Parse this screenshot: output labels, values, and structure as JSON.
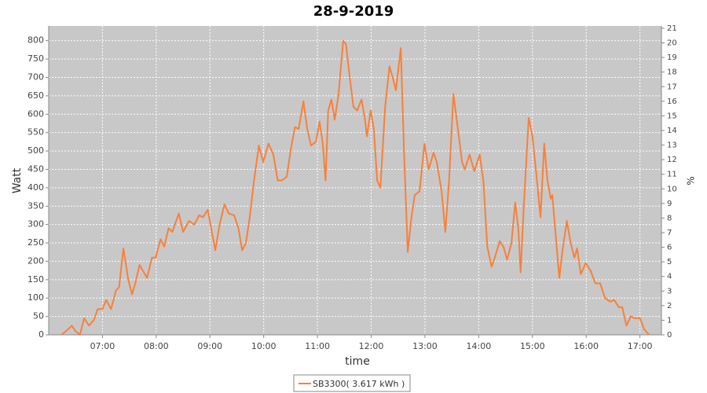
{
  "chart_data": {
    "type": "line",
    "title": "28-9-2019",
    "xlabel": "time",
    "ylabel": "Watt",
    "y2label": "%",
    "x": [
      6.24,
      6.36,
      6.43,
      6.5,
      6.58,
      6.66,
      6.75,
      6.84,
      6.91,
      7.0,
      7.07,
      7.16,
      7.25,
      7.31,
      7.39,
      7.48,
      7.55,
      7.61,
      7.69,
      7.77,
      7.83,
      7.92,
      7.99,
      8.08,
      8.15,
      8.23,
      8.3,
      8.42,
      8.5,
      8.61,
      8.71,
      8.8,
      8.87,
      8.96,
      9.01,
      9.1,
      9.18,
      9.27,
      9.35,
      9.45,
      9.53,
      9.6,
      9.67,
      9.74,
      9.82,
      9.91,
      9.99,
      10.09,
      10.18,
      10.26,
      10.34,
      10.43,
      10.5,
      10.58,
      10.65,
      10.74,
      10.81,
      10.88,
      10.97,
      11.04,
      11.1,
      11.15,
      11.2,
      11.26,
      11.32,
      11.39,
      11.48,
      11.53,
      11.6,
      11.67,
      11.74,
      11.82,
      11.88,
      11.92,
      11.99,
      12.05,
      12.11,
      12.17,
      12.26,
      12.34,
      12.4,
      12.46,
      12.55,
      12.61,
      12.68,
      12.74,
      12.81,
      12.9,
      12.99,
      13.07,
      13.16,
      13.22,
      13.31,
      13.38,
      13.45,
      13.53,
      13.6,
      13.69,
      13.74,
      13.83,
      13.92,
      14.02,
      14.09,
      14.16,
      14.24,
      14.3,
      14.39,
      14.46,
      14.53,
      14.61,
      14.68,
      14.74,
      14.78,
      14.84,
      14.93,
      15.0,
      15.07,
      15.15,
      15.22,
      15.28,
      15.34,
      15.37,
      15.45,
      15.5,
      15.56,
      15.64,
      15.71,
      15.78,
      15.83,
      15.9,
      15.99,
      16.08,
      16.17,
      16.26,
      16.35,
      16.45,
      16.52,
      16.61,
      16.67,
      16.75,
      16.83,
      16.91,
      17.0,
      17.08,
      17.17
    ],
    "series": [
      {
        "name": "SB3300( 3.617 kWh )",
        "color": "#f8803a",
        "values": [
          0,
          15,
          25,
          10,
          0,
          45,
          25,
          40,
          70,
          70,
          95,
          70,
          120,
          130,
          235,
          150,
          110,
          140,
          190,
          170,
          155,
          210,
          210,
          260,
          240,
          290,
          280,
          330,
          280,
          310,
          300,
          325,
          320,
          340,
          300,
          230,
          300,
          355,
          330,
          325,
          290,
          230,
          250,
          320,
          420,
          515,
          470,
          520,
          490,
          420,
          420,
          430,
          500,
          565,
          560,
          635,
          560,
          515,
          525,
          580,
          520,
          420,
          610,
          640,
          585,
          650,
          800,
          790,
          700,
          620,
          610,
          640,
          590,
          540,
          610,
          560,
          420,
          400,
          620,
          730,
          700,
          665,
          780,
          500,
          225,
          310,
          380,
          390,
          520,
          450,
          495,
          470,
          390,
          280,
          420,
          655,
          575,
          470,
          450,
          490,
          445,
          490,
          415,
          240,
          185,
          210,
          255,
          240,
          205,
          250,
          360,
          285,
          170,
          350,
          590,
          540,
          440,
          320,
          520,
          420,
          370,
          380,
          240,
          155,
          230,
          310,
          250,
          210,
          235,
          165,
          195,
          175,
          140,
          140,
          100,
          90,
          95,
          75,
          75,
          25,
          50,
          45,
          45,
          15,
          0
        ]
      }
    ],
    "xlim": [
      6.0,
      17.4
    ],
    "xticks": [
      {
        "value": 7,
        "label": "07:00"
      },
      {
        "value": 8,
        "label": "08:00"
      },
      {
        "value": 9,
        "label": "09:00"
      },
      {
        "value": 10,
        "label": "10:00"
      },
      {
        "value": 11,
        "label": "11:00"
      },
      {
        "value": 12,
        "label": "12:00"
      },
      {
        "value": 13,
        "label": "13:00"
      },
      {
        "value": 14,
        "label": "14:00"
      },
      {
        "value": 15,
        "label": "15:00"
      },
      {
        "value": 16,
        "label": "16:00"
      },
      {
        "value": 17,
        "label": "17:00"
      }
    ],
    "ylim": [
      0,
      840
    ],
    "yticks": [
      0,
      50,
      100,
      150,
      200,
      250,
      300,
      350,
      400,
      450,
      500,
      550,
      600,
      650,
      700,
      750,
      800
    ],
    "y2lim": [
      0,
      21.16
    ],
    "y2ticks": [
      0,
      1,
      2,
      3,
      4,
      5,
      6,
      7,
      8,
      9,
      10,
      11,
      12,
      13,
      14,
      15,
      16,
      17,
      18,
      19,
      20,
      21
    ],
    "grid": true,
    "legend": "bottom"
  }
}
